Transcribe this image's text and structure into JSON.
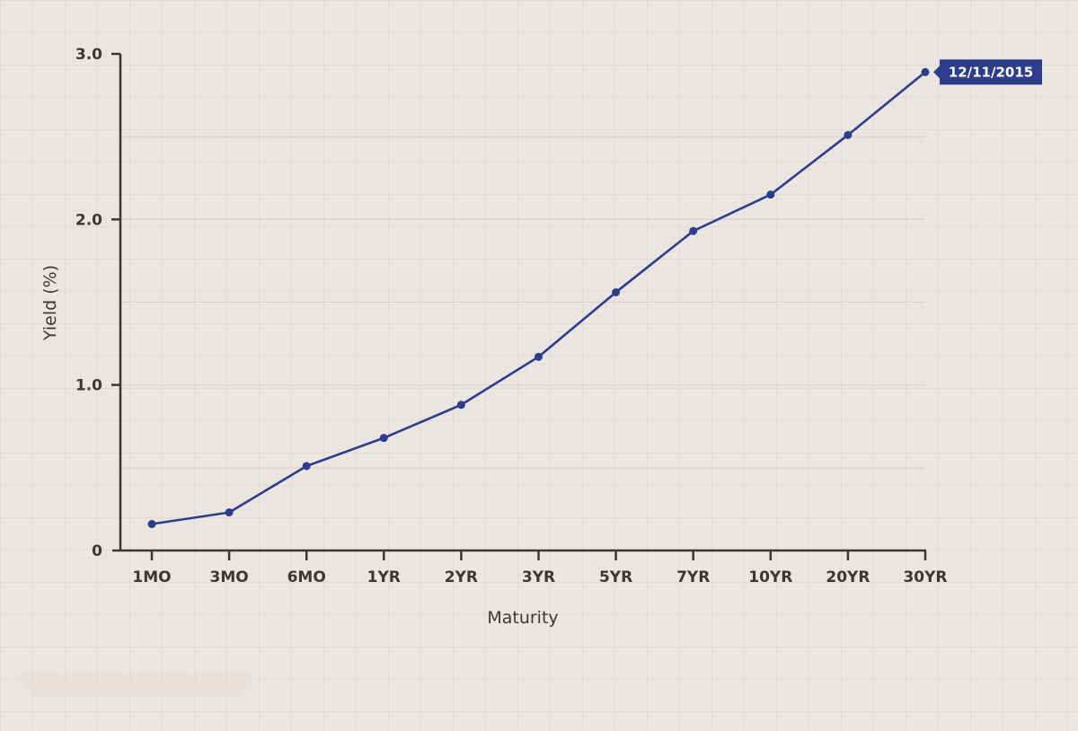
{
  "chart_data": {
    "type": "line",
    "title": "",
    "xlabel": "Maturity",
    "ylabel": "Yield (%)",
    "categories": [
      "1MO",
      "3MO",
      "6MO",
      "1YR",
      "2YR",
      "3YR",
      "5YR",
      "7YR",
      "10YR",
      "20YR",
      "30YR"
    ],
    "series": [
      {
        "name": "12/11/2015",
        "values": [
          0.16,
          0.23,
          0.51,
          0.68,
          0.88,
          1.17,
          1.56,
          1.93,
          2.15,
          2.51,
          2.89
        ],
        "color": "#2e3d8a"
      }
    ],
    "ylim": [
      0,
      3.0
    ],
    "yticks": [
      0,
      1.0,
      2.0,
      3.0
    ],
    "ytick_labels": [
      "0",
      "1.0",
      "2.0",
      "3.0"
    ],
    "gridlines": [
      0.5,
      1.0,
      1.5,
      2.0,
      2.5
    ],
    "grid": true,
    "annotations": [
      {
        "text": "12/11/2015",
        "at": "30YR",
        "style": "flag-label"
      }
    ],
    "legend": "none"
  },
  "colors": {
    "background": "#ebe6e2",
    "line": "#2e3d8a",
    "axis": "#3a3836",
    "gridline": "#d9d2cd",
    "flag": "#2e3d8a"
  }
}
